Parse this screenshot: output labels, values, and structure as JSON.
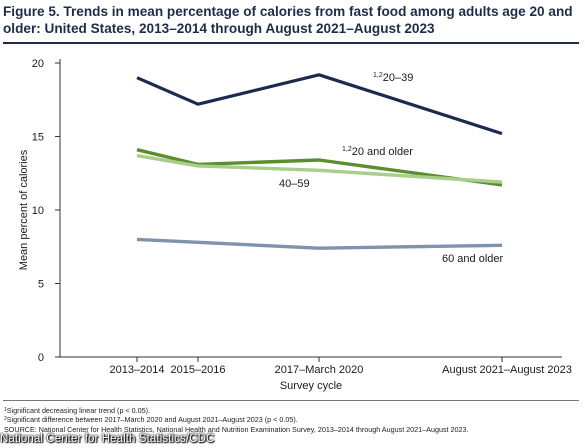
{
  "figure": {
    "title": "Figure 5. Trends in mean percentage of calories from fast food among adults age 20 and older: United States, 2013–2014 through August 2021–August 2023",
    "footnotes": [
      {
        "sup": "1",
        "text": "Significant decreasing linear trend (p < 0.05)."
      },
      {
        "sup": "2",
        "text": "Significant difference between 2017–March 2020 and August 2021–August 2023 (p < 0.05)."
      },
      {
        "sup": "",
        "text": "SOURCE: National Center for Health Statistics, National Health and Nutrition Examination Survey, 2013–2014 through August 2021–August 2023."
      }
    ],
    "credit": "National Center for Health Statistics/CDC"
  },
  "chart_data": {
    "type": "line",
    "title": "Trends in mean percentage of calories from fast food among adults age 20 and older: United States, 2013–2014 through August 2021–August 2023",
    "xlabel": "Survey cycle",
    "ylabel": "Mean percent of calories",
    "categories": [
      "2013–2014",
      "2015–2016",
      "2017–March 2020",
      "August 2021–August 2023"
    ],
    "ylim": [
      0,
      20
    ],
    "yticks": [
      0,
      5,
      10,
      15,
      20
    ],
    "grid": false,
    "series": [
      {
        "name": "20–39",
        "sup": "1,2",
        "color": "#1b2a4e",
        "width": 3.2,
        "values": [
          19.0,
          17.2,
          19.2,
          15.2
        ]
      },
      {
        "name": "20 and older",
        "sup": "1,2",
        "color": "#5a8f2e",
        "width": 3.4,
        "values": [
          14.1,
          13.1,
          13.4,
          11.7
        ]
      },
      {
        "name": "40–59",
        "sup": "",
        "color": "#a9cd8b",
        "width": 3.4,
        "values": [
          13.7,
          13.0,
          12.7,
          11.9
        ]
      },
      {
        "name": "60 and older",
        "sup": "",
        "color": "#7f93ad",
        "width": 3.4,
        "values": [
          8.0,
          7.8,
          7.4,
          7.6
        ]
      }
    ]
  }
}
